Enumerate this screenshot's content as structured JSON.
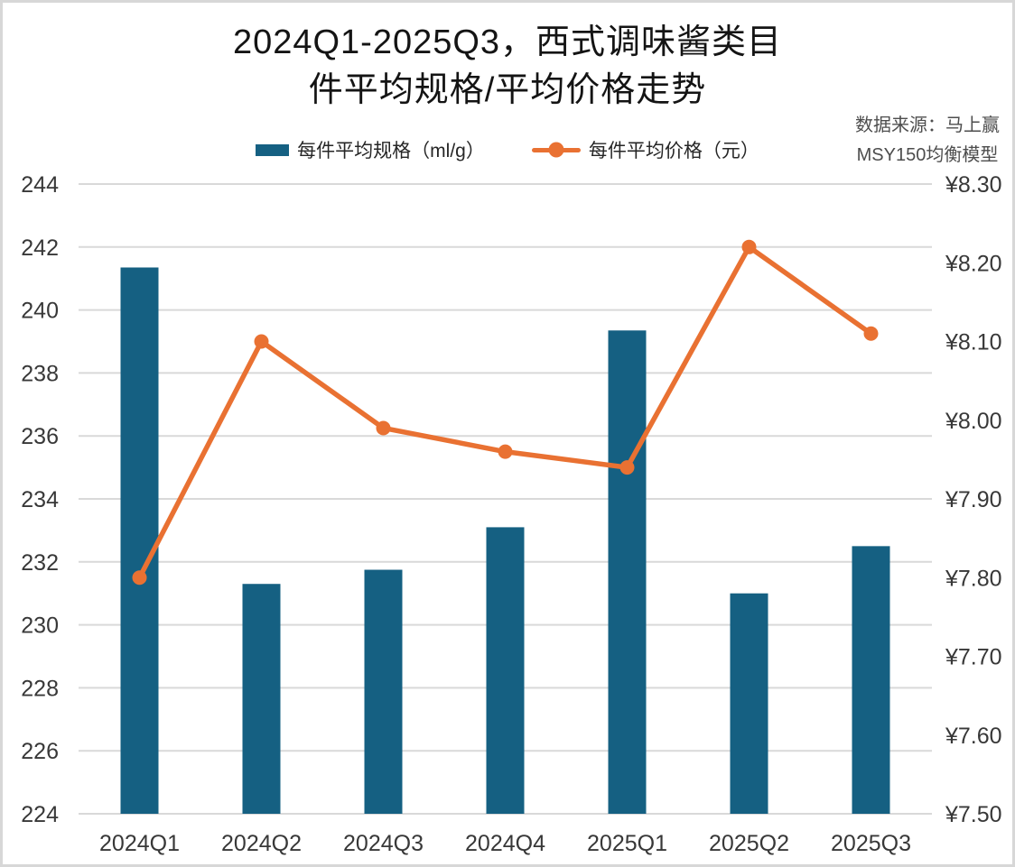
{
  "title": {
    "line1": "2024Q1-2025Q3，西式调味酱类目",
    "line2": "件平均规格/平均价格走势"
  },
  "source": {
    "line1": "数据来源：马上赢",
    "line2": "MSY150均衡模型"
  },
  "legend": {
    "spec_label": "每件平均规格（ml/g）",
    "price_label": "每件平均价格（元）"
  },
  "colors": {
    "bar": "#156082",
    "line": "#E97132",
    "grid": "#D9D9D9",
    "axis_text": "#383838",
    "frame_border": "#D7D7D7"
  },
  "chart_data": {
    "type": "bar+line combo, dual axis",
    "title": "2024Q1-2025Q3，西式调味酱类目件平均规格/平均价格走势",
    "categories": [
      "2024Q1",
      "2024Q2",
      "2024Q3",
      "2024Q4",
      "2025Q1",
      "2025Q2",
      "2025Q3"
    ],
    "series": [
      {
        "name": "每件平均规格（ml/g）",
        "type": "bar",
        "axis": "left",
        "values": [
          241.35,
          231.3,
          231.75,
          233.1,
          239.35,
          231.0,
          232.5
        ]
      },
      {
        "name": "每件平均价格（元）",
        "type": "line",
        "axis": "right",
        "values": [
          7.8,
          8.1,
          7.99,
          7.96,
          7.94,
          8.22,
          8.11
        ]
      }
    ],
    "left_axis": {
      "min": 224,
      "max": 244,
      "step": 2,
      "tick_labels": [
        "244",
        "242",
        "240",
        "238",
        "236",
        "234",
        "232",
        "230",
        "228",
        "226",
        "224"
      ]
    },
    "right_axis": {
      "min": 7.5,
      "max": 8.3,
      "step": 0.1,
      "tick_labels": [
        "¥8.30",
        "¥8.20",
        "¥8.10",
        "¥8.00",
        "¥7.90",
        "¥7.80",
        "¥7.70",
        "¥7.60",
        "¥7.50"
      ]
    },
    "grid": true,
    "legend_position": "top"
  }
}
